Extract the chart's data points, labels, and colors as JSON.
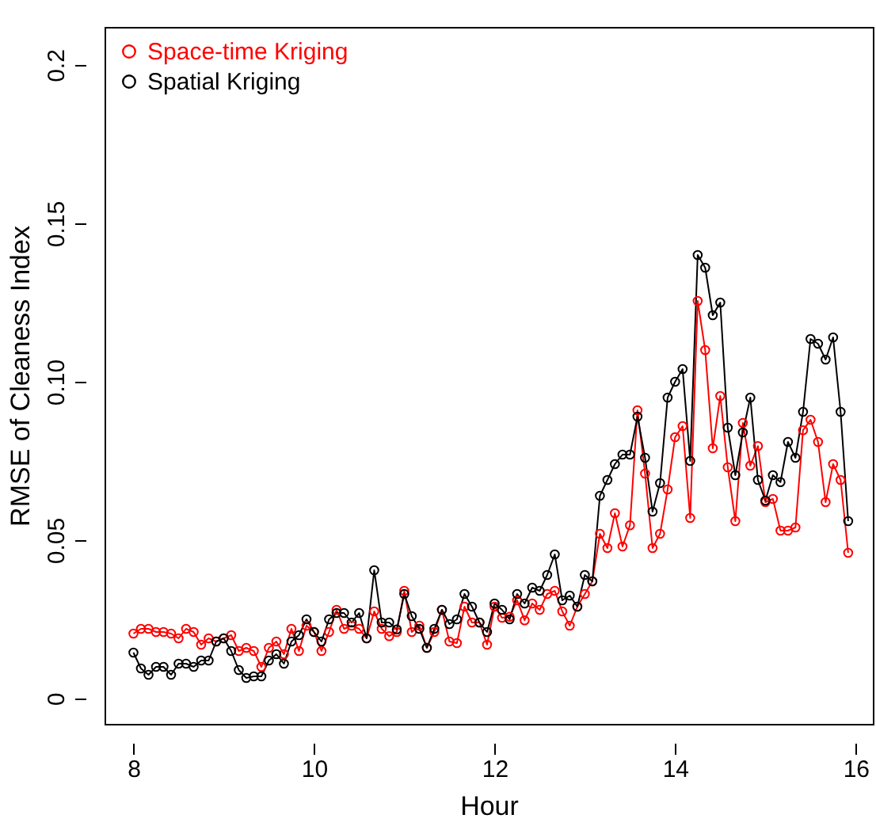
{
  "chart_data": {
    "type": "line",
    "xlabel": "Hour",
    "ylabel": "RMSE of Cleaness Index",
    "x": [
      8,
      8.083,
      8.167,
      8.25,
      8.333,
      8.417,
      8.5,
      8.583,
      8.667,
      8.75,
      8.833,
      8.917,
      9,
      9.083,
      9.167,
      9.25,
      9.333,
      9.417,
      9.5,
      9.583,
      9.667,
      9.75,
      9.833,
      9.917,
      10,
      10.083,
      10.167,
      10.25,
      10.333,
      10.417,
      10.5,
      10.583,
      10.667,
      10.75,
      10.833,
      10.917,
      11,
      11.083,
      11.167,
      11.25,
      11.333,
      11.417,
      11.5,
      11.583,
      11.667,
      11.75,
      11.833,
      11.917,
      12,
      12.083,
      12.167,
      12.25,
      12.333,
      12.417,
      12.5,
      12.583,
      12.667,
      12.75,
      12.833,
      12.917,
      13,
      13.083,
      13.167,
      13.25,
      13.333,
      13.417,
      13.5,
      13.583,
      13.667,
      13.75,
      13.833,
      13.917,
      14,
      14.083,
      14.167,
      14.25,
      14.333,
      14.417,
      14.5,
      14.583,
      14.667,
      14.75,
      14.833,
      14.917,
      15,
      15.083,
      15.167,
      15.25,
      15.333,
      15.417,
      15.5,
      15.583,
      15.667,
      15.75,
      15.833,
      15.917
    ],
    "series": [
      {
        "name": "Space-time Kriging",
        "color": "#ff0000",
        "values": [
          0.0205,
          0.022,
          0.022,
          0.021,
          0.021,
          0.0205,
          0.019,
          0.022,
          0.021,
          0.017,
          0.019,
          0.018,
          0.019,
          0.02,
          0.015,
          0.016,
          0.015,
          0.01,
          0.016,
          0.018,
          0.014,
          0.022,
          0.015,
          0.023,
          0.021,
          0.015,
          0.021,
          0.028,
          0.022,
          0.023,
          0.022,
          0.019,
          0.0275,
          0.022,
          0.0197,
          0.021,
          0.034,
          0.021,
          0.023,
          0.016,
          0.021,
          0.028,
          0.018,
          0.0175,
          0.029,
          0.024,
          0.024,
          0.017,
          0.029,
          0.0255,
          0.0258,
          0.031,
          0.0247,
          0.03,
          0.028,
          0.033,
          0.034,
          0.0275,
          0.023,
          0.029,
          0.033,
          0.037,
          0.052,
          0.0475,
          0.0585,
          0.048,
          0.0547,
          0.091,
          0.071,
          0.0475,
          0.052,
          0.066,
          0.0825,
          0.086,
          0.057,
          0.1255,
          0.11,
          0.079,
          0.0955,
          0.073,
          0.056,
          0.087,
          0.0735,
          0.0797,
          0.062,
          0.063,
          0.053,
          0.053,
          0.054,
          0.0847,
          0.088,
          0.081,
          0.062,
          0.074,
          0.069,
          0.046
        ]
      },
      {
        "name": "Spatial Kriging",
        "color": "#000000",
        "values": [
          0.0145,
          0.0095,
          0.0075,
          0.01,
          0.01,
          0.0075,
          0.011,
          0.011,
          0.01,
          0.012,
          0.012,
          0.018,
          0.019,
          0.015,
          0.009,
          0.0065,
          0.007,
          0.007,
          0.012,
          0.014,
          0.011,
          0.018,
          0.02,
          0.025,
          0.021,
          0.018,
          0.025,
          0.027,
          0.027,
          0.024,
          0.027,
          0.019,
          0.0405,
          0.024,
          0.024,
          0.0218,
          0.033,
          0.026,
          0.022,
          0.016,
          0.022,
          0.028,
          0.0235,
          0.025,
          0.033,
          0.029,
          0.024,
          0.021,
          0.03,
          0.028,
          0.025,
          0.033,
          0.03,
          0.035,
          0.034,
          0.039,
          0.0455,
          0.031,
          0.0325,
          0.029,
          0.039,
          0.037,
          0.064,
          0.069,
          0.074,
          0.077,
          0.077,
          0.089,
          0.076,
          0.059,
          0.068,
          0.095,
          0.1,
          0.104,
          0.075,
          0.14,
          0.136,
          0.121,
          0.125,
          0.0855,
          0.0705,
          0.084,
          0.095,
          0.069,
          0.0625,
          0.0705,
          0.0683,
          0.081,
          0.076,
          0.0905,
          0.1135,
          0.112,
          0.107,
          0.114,
          0.0905,
          0.056
        ]
      }
    ],
    "xlim": [
      7.68,
      16.19
    ],
    "ylim": [
      -0.008,
      0.212
    ],
    "xticks": [
      8,
      10,
      12,
      14,
      16
    ],
    "yticks": [
      0,
      0.05,
      {
        "value": 0.1,
        "label": "0.10"
      },
      0.15,
      0.2
    ],
    "grid": false,
    "legend": "top left",
    "marker": "circle",
    "line_style": "solid"
  }
}
